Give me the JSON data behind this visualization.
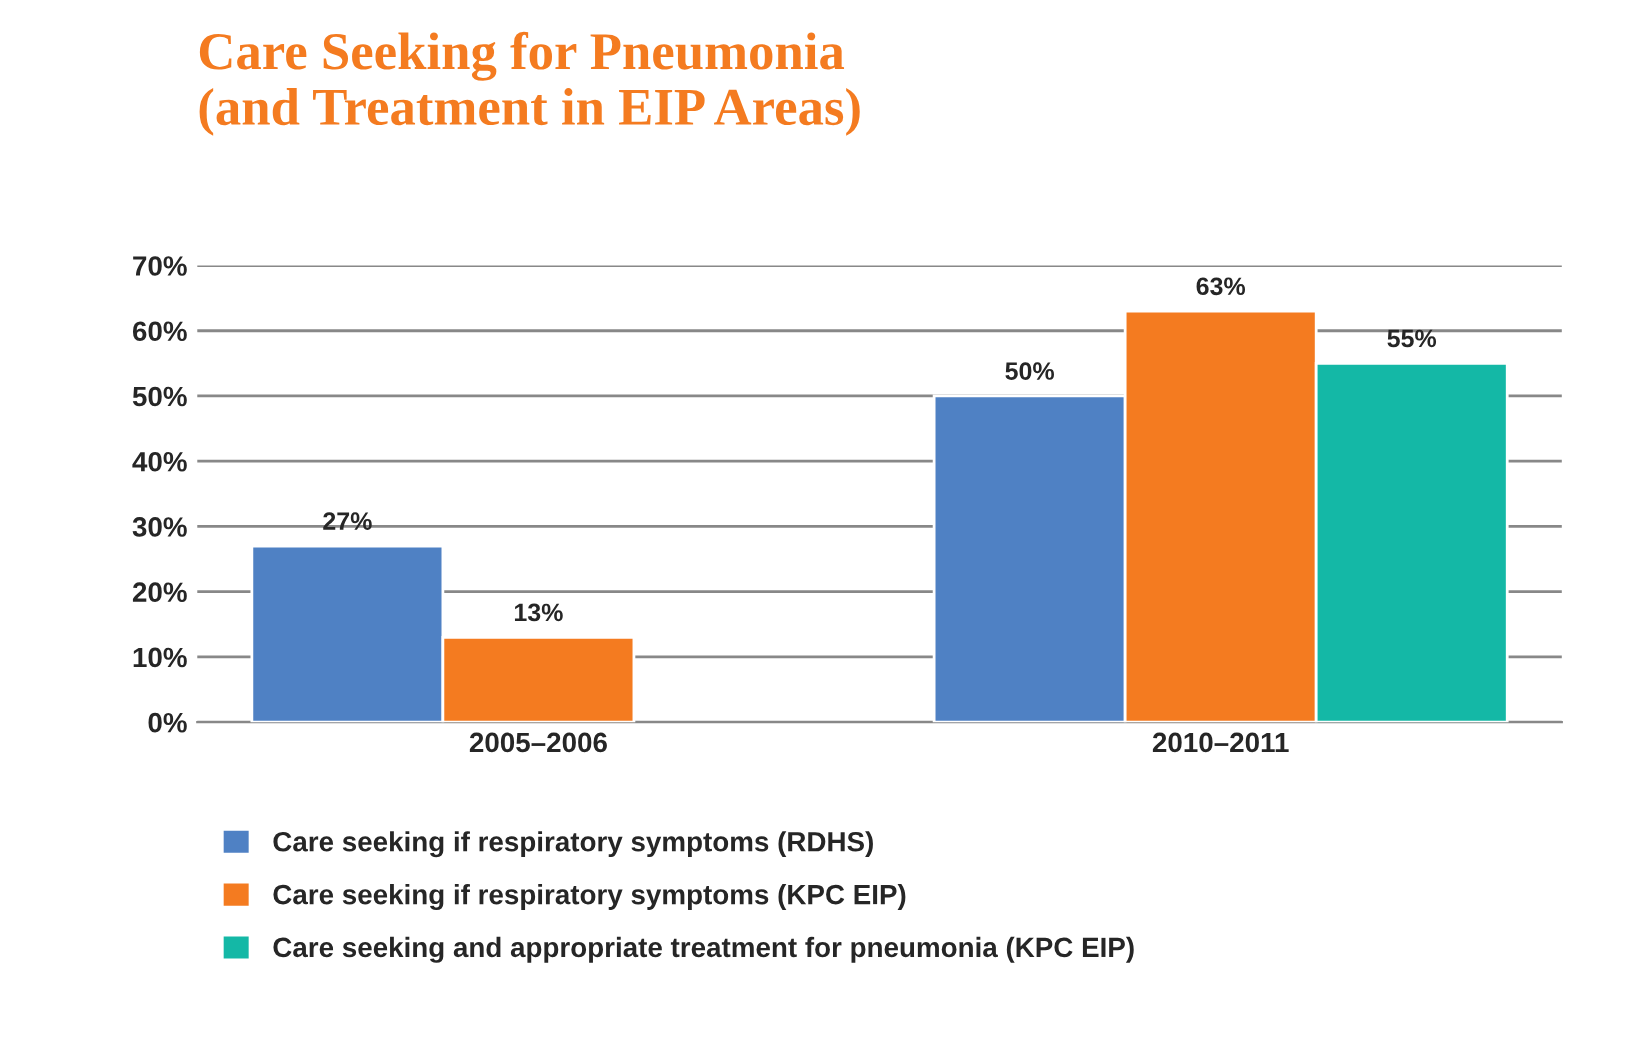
{
  "chart_data": {
    "type": "bar",
    "title": "Care Seeking for Pneumonia\n(and Treatment in EIP Areas)",
    "categories": [
      "2005–2006",
      "2010–2011"
    ],
    "series": [
      {
        "name": "Care seeking if respiratory symptoms (RDHS)",
        "color": "#4f81c4",
        "values": [
          27,
          50
        ],
        "value_labels": [
          "27%",
          "50%"
        ]
      },
      {
        "name": "Care seeking if respiratory symptoms (KPC EIP)",
        "color": "#f47b20",
        "values": [
          13,
          63
        ],
        "value_labels": [
          "13%",
          "63%"
        ]
      },
      {
        "name": "Care seeking and appropriate treatment for pneumonia (KPC EIP)",
        "color": "#14b8a6",
        "values": [
          null,
          55
        ],
        "value_labels": [
          null,
          "55%"
        ]
      }
    ],
    "ylim": [
      0,
      70
    ],
    "yticks": [
      {
        "value": 0,
        "label": "0%"
      },
      {
        "value": 10,
        "label": "10%"
      },
      {
        "value": 20,
        "label": "20%"
      },
      {
        "value": 30,
        "label": "30%"
      },
      {
        "value": 40,
        "label": "40%"
      },
      {
        "value": 50,
        "label": "50%"
      },
      {
        "value": 60,
        "label": "60%"
      },
      {
        "value": 70,
        "label": "70%"
      }
    ],
    "grid": "y",
    "legend": "bottom"
  }
}
